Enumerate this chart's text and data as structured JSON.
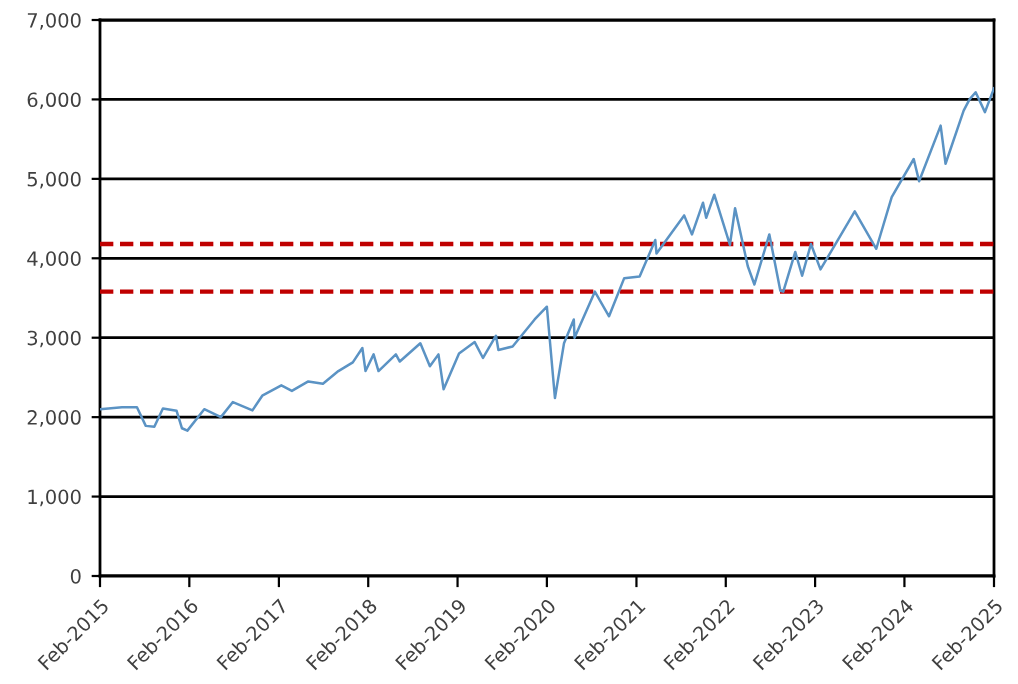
{
  "chart_data": {
    "type": "line",
    "x": [
      "2015-02-19",
      "2015-05-20",
      "2015-07-20",
      "2015-08-25",
      "2015-09-29",
      "2015-11-03",
      "2015-12-29",
      "2016-01-20",
      "2016-02-11",
      "2016-04-20",
      "2016-06-27",
      "2016-08-15",
      "2016-11-03",
      "2016-12-13",
      "2017-03-01",
      "2017-04-13",
      "2017-06-19",
      "2017-08-18",
      "2017-10-20",
      "2017-12-18",
      "2018-01-26",
      "2018-02-08",
      "2018-03-13",
      "2018-04-02",
      "2018-06-12",
      "2018-06-28",
      "2018-09-20",
      "2018-10-29",
      "2018-12-03",
      "2018-12-24",
      "2019-02-25",
      "2019-04-30",
      "2019-06-03",
      "2019-07-26",
      "2019-08-05",
      "2019-10-02",
      "2019-12-31",
      "2020-02-19",
      "2020-03-23",
      "2020-04-29",
      "2020-06-08",
      "2020-06-11",
      "2020-09-02",
      "2020-10-30",
      "2020-12-31",
      "2021-03-04",
      "2021-05-07",
      "2021-05-12",
      "2021-09-02",
      "2021-10-04",
      "2021-11-18",
      "2021-12-01",
      "2022-01-03",
      "2022-03-08",
      "2022-03-29",
      "2022-05-20",
      "2022-06-16",
      "2022-08-16",
      "2022-09-30",
      "2022-10-12",
      "2022-11-30",
      "2022-12-28",
      "2023-02-02",
      "2023-03-13",
      "2023-07-31",
      "2023-10-27",
      "2023-12-29",
      "2024-03-28",
      "2024-04-19",
      "2024-07-16",
      "2024-08-05",
      "2024-10-18",
      "2024-11-11",
      "2024-12-06",
      "2025-01-13",
      "2025-02-19"
    ],
    "series": [
      {
        "color": "#5b93c4",
        "values": [
          2100,
          2125,
          2125,
          1890,
          1880,
          2110,
          2080,
          1860,
          1830,
          2100,
          2000,
          2190,
          2085,
          2270,
          2400,
          2330,
          2450,
          2420,
          2580,
          2690,
          2870,
          2580,
          2790,
          2580,
          2790,
          2700,
          2930,
          2640,
          2790,
          2350,
          2800,
          2945,
          2745,
          3025,
          2845,
          2890,
          3230,
          3390,
          2240,
          2930,
          3230,
          3000,
          3580,
          3270,
          3750,
          3770,
          4230,
          4060,
          4540,
          4300,
          4700,
          4510,
          4800,
          4170,
          4630,
          3900,
          3670,
          4300,
          3590,
          3580,
          4080,
          3780,
          4180,
          3860,
          4590,
          4120,
          4770,
          5250,
          4970,
          5670,
          5190,
          5860,
          6000,
          6090,
          5840,
          6140
        ]
      }
    ],
    "xlim": [
      "2015-02-19",
      "2025-02-19"
    ],
    "xticks": [
      {
        "value": "2015-02-19",
        "label": "Feb-2015"
      },
      {
        "value": "2016-02-19",
        "label": "Feb-2016"
      },
      {
        "value": "2017-02-19",
        "label": "Feb-2017"
      },
      {
        "value": "2018-02-19",
        "label": "Feb-2018"
      },
      {
        "value": "2019-02-19",
        "label": "Feb-2019"
      },
      {
        "value": "2020-02-19",
        "label": "Feb-2020"
      },
      {
        "value": "2021-02-19",
        "label": "Feb-2021"
      },
      {
        "value": "2022-02-19",
        "label": "Feb-2022"
      },
      {
        "value": "2023-02-19",
        "label": "Feb-2023"
      },
      {
        "value": "2024-02-19",
        "label": "Feb-2024"
      },
      {
        "value": "2025-02-19",
        "label": "Feb-2025"
      }
    ],
    "ylim": [
      0,
      7000
    ],
    "yticks": [
      {
        "value": 0,
        "label": "0"
      },
      {
        "value": 1000,
        "label": "1,000"
      },
      {
        "value": 2000,
        "label": "2,000"
      },
      {
        "value": 3000,
        "label": "3,000"
      },
      {
        "value": 4000,
        "label": "4,000"
      },
      {
        "value": 5000,
        "label": "5,000"
      },
      {
        "value": 6000,
        "label": "6,000"
      },
      {
        "value": 7000,
        "label": "7,000"
      }
    ],
    "grid": "y",
    "ref_lines": [
      {
        "axis": "y",
        "value": 4180,
        "color": "#c00000",
        "line_style": "dashed"
      },
      {
        "axis": "y",
        "value": 3580,
        "color": "#c00000",
        "line_style": "dashed"
      }
    ]
  }
}
